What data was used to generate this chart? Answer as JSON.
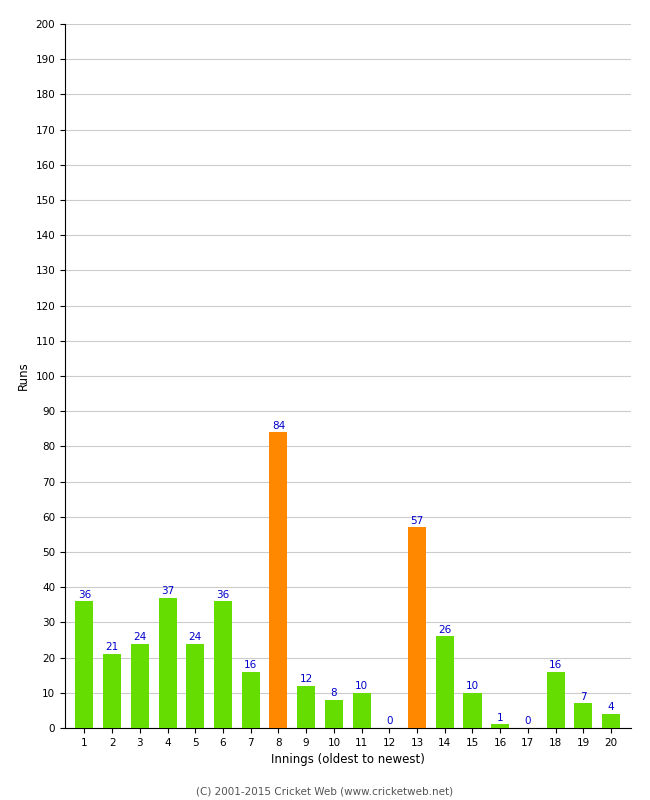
{
  "innings": [
    1,
    2,
    3,
    4,
    5,
    6,
    7,
    8,
    9,
    10,
    11,
    12,
    13,
    14,
    15,
    16,
    17,
    18,
    19,
    20
  ],
  "runs": [
    36,
    21,
    24,
    37,
    24,
    36,
    16,
    84,
    12,
    8,
    10,
    0,
    57,
    26,
    10,
    1,
    0,
    16,
    7,
    4
  ],
  "colors": [
    "#66dd00",
    "#66dd00",
    "#66dd00",
    "#66dd00",
    "#66dd00",
    "#66dd00",
    "#66dd00",
    "#ff8800",
    "#66dd00",
    "#66dd00",
    "#66dd00",
    "#66dd00",
    "#ff8800",
    "#66dd00",
    "#66dd00",
    "#66dd00",
    "#66dd00",
    "#66dd00",
    "#66dd00",
    "#66dd00"
  ],
  "xlabel": "Innings (oldest to newest)",
  "ylabel": "Runs",
  "ylim": [
    0,
    200
  ],
  "yticks": [
    0,
    10,
    20,
    30,
    40,
    50,
    60,
    70,
    80,
    90,
    100,
    110,
    120,
    130,
    140,
    150,
    160,
    170,
    180,
    190,
    200
  ],
  "label_color": "#0000cc",
  "label_fontsize": 7.5,
  "axis_fontsize": 8.5,
  "tick_fontsize": 7.5,
  "footer": "(C) 2001-2015 Cricket Web (www.cricketweb.net)",
  "footer_fontsize": 7.5,
  "bg_color": "#ffffff",
  "grid_color": "#cccccc",
  "bar_width": 0.65
}
